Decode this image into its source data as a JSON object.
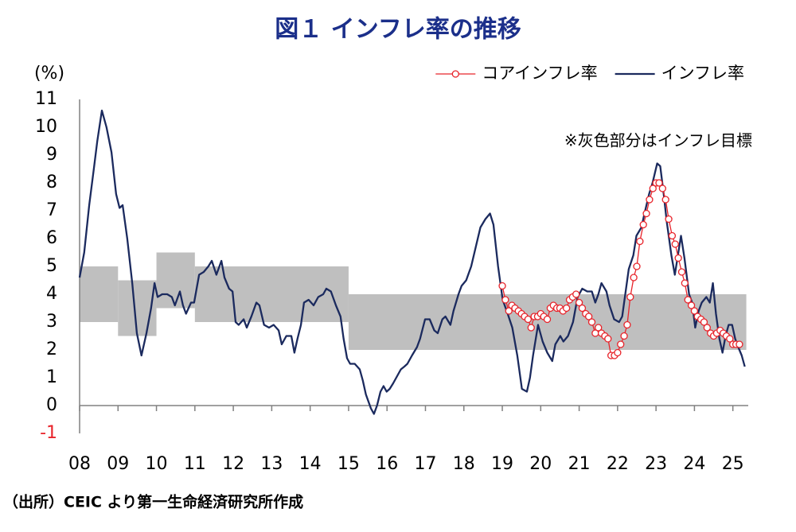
{
  "chart_data": {
    "type": "line",
    "title": "図１ インフレ率の推移",
    "y_label": "(%)",
    "annotation": "※灰色部分はインフレ目標",
    "source": "（出所）CEIC より第一生命経済研究所作成",
    "xlim": [
      2008,
      2025.4
    ],
    "xticks": [
      {
        "value": 2008,
        "label": "08"
      },
      {
        "value": 2009,
        "label": "09"
      },
      {
        "value": 2010,
        "label": "10"
      },
      {
        "value": 2011,
        "label": "11"
      },
      {
        "value": 2012,
        "label": "12"
      },
      {
        "value": 2013,
        "label": "13"
      },
      {
        "value": 2014,
        "label": "14"
      },
      {
        "value": 2015,
        "label": "15"
      },
      {
        "value": 2016,
        "label": "16"
      },
      {
        "value": 2017,
        "label": "17"
      },
      {
        "value": 2018,
        "label": "18"
      },
      {
        "value": 2019,
        "label": "19"
      },
      {
        "value": 2020,
        "label": "20"
      },
      {
        "value": 2021,
        "label": "21"
      },
      {
        "value": 2022,
        "label": "22"
      },
      {
        "value": 2023,
        "label": "23"
      },
      {
        "value": 2024,
        "label": "24"
      },
      {
        "value": 2025,
        "label": "25"
      }
    ],
    "ylim": [
      -1,
      11
    ],
    "yticks": [
      -1,
      0,
      1,
      2,
      3,
      4,
      5,
      6,
      7,
      8,
      9,
      10,
      11
    ],
    "negative_tick_color": "#e8242b",
    "grid": false,
    "legend": "top-right",
    "target_band": {
      "color": "#bfbfbf",
      "segments": [
        {
          "x": [
            2008,
            2009
          ],
          "range": [
            3,
            5
          ]
        },
        {
          "x": [
            2009,
            2010
          ],
          "range": [
            2.5,
            4.5
          ]
        },
        {
          "x": [
            2010,
            2011
          ],
          "range": [
            3.5,
            5.5
          ]
        },
        {
          "x": [
            2011,
            2015
          ],
          "range": [
            3,
            5
          ]
        },
        {
          "x": [
            2015,
            2025.35
          ],
          "range": [
            2,
            4
          ]
        }
      ]
    },
    "series": [
      {
        "name": "コアインフレ率",
        "color": "#e8242b",
        "marker": "circle",
        "x": [
          2019.0,
          2019.08,
          2019.17,
          2019.25,
          2019.33,
          2019.42,
          2019.5,
          2019.58,
          2019.67,
          2019.75,
          2019.83,
          2019.92,
          2020.0,
          2020.08,
          2020.17,
          2020.25,
          2020.33,
          2020.42,
          2020.5,
          2020.58,
          2020.67,
          2020.75,
          2020.83,
          2020.92,
          2021.0,
          2021.08,
          2021.17,
          2021.25,
          2021.33,
          2021.42,
          2021.5,
          2021.58,
          2021.67,
          2021.75,
          2021.83,
          2021.92,
          2022.0,
          2022.08,
          2022.17,
          2022.25,
          2022.33,
          2022.42,
          2022.5,
          2022.58,
          2022.67,
          2022.75,
          2022.83,
          2022.92,
          2023.0,
          2023.08,
          2023.17,
          2023.25,
          2023.33,
          2023.42,
          2023.5,
          2023.58,
          2023.67,
          2023.75,
          2023.83,
          2023.92,
          2024.0,
          2024.08,
          2024.17,
          2024.25,
          2024.33,
          2024.42,
          2024.5,
          2024.58,
          2024.67,
          2024.75,
          2024.83,
          2024.92,
          2025.0,
          2025.08,
          2025.17
        ],
        "values": [
          4.3,
          3.8,
          3.4,
          3.6,
          3.5,
          3.4,
          3.3,
          3.2,
          3.1,
          2.8,
          3.2,
          3.2,
          3.3,
          3.2,
          3.1,
          3.5,
          3.6,
          3.5,
          3.5,
          3.4,
          3.5,
          3.8,
          3.9,
          4.0,
          3.7,
          3.5,
          3.3,
          3.2,
          3.0,
          2.6,
          2.8,
          2.6,
          2.5,
          2.4,
          1.8,
          1.8,
          1.9,
          2.2,
          2.5,
          2.9,
          3.9,
          4.6,
          5.0,
          5.9,
          6.5,
          6.9,
          7.4,
          7.8,
          8.0,
          8.0,
          7.8,
          7.4,
          6.7,
          6.1,
          5.8,
          5.3,
          4.8,
          4.4,
          3.8,
          3.6,
          3.4,
          3.2,
          3.1,
          3.0,
          2.8,
          2.6,
          2.5,
          2.6,
          2.7,
          2.6,
          2.5,
          2.4,
          2.2,
          2.2,
          2.2
        ]
      },
      {
        "name": "インフレ率",
        "color": "#1b2a5e",
        "x": [
          2008.0,
          2008.12,
          2008.25,
          2008.37,
          2008.46,
          2008.58,
          2008.7,
          2008.83,
          2008.95,
          2009.04,
          2009.12,
          2009.24,
          2009.37,
          2009.49,
          2009.61,
          2009.74,
          2009.86,
          2009.95,
          2010.03,
          2010.15,
          2010.28,
          2010.4,
          2010.48,
          2010.61,
          2010.69,
          2010.77,
          2010.9,
          2010.98,
          2011.11,
          2011.23,
          2011.35,
          2011.44,
          2011.56,
          2011.69,
          2011.77,
          2011.89,
          2011.98,
          2012.06,
          2012.14,
          2012.27,
          2012.35,
          2012.47,
          2012.6,
          2012.68,
          2012.8,
          2012.93,
          2013.05,
          2013.18,
          2013.26,
          2013.38,
          2013.51,
          2013.59,
          2013.67,
          2013.76,
          2013.84,
          2013.96,
          2014.09,
          2014.21,
          2014.34,
          2014.42,
          2014.54,
          2014.67,
          2014.79,
          2014.87,
          2014.96,
          2015.04,
          2015.16,
          2015.29,
          2015.37,
          2015.45,
          2015.58,
          2015.66,
          2015.74,
          2015.83,
          2015.91,
          2015.99,
          2016.07,
          2016.16,
          2016.28,
          2016.36,
          2016.45,
          2016.53,
          2016.65,
          2016.78,
          2016.86,
          2016.99,
          2017.11,
          2017.23,
          2017.32,
          2017.44,
          2017.52,
          2017.65,
          2017.73,
          2017.86,
          2017.94,
          2018.06,
          2018.19,
          2018.31,
          2018.43,
          2018.56,
          2018.68,
          2018.77,
          2018.89,
          2019.01,
          2019.14,
          2019.26,
          2019.39,
          2019.51,
          2019.64,
          2019.72,
          2019.8,
          2019.93,
          2020.05,
          2020.17,
          2020.3,
          2020.38,
          2020.51,
          2020.59,
          2020.71,
          2020.84,
          2020.96,
          2021.08,
          2021.21,
          2021.33,
          2021.42,
          2021.5,
          2021.58,
          2021.71,
          2021.79,
          2021.91,
          2022.04,
          2022.12,
          2022.2,
          2022.29,
          2022.41,
          2022.49,
          2022.62,
          2022.7,
          2022.82,
          2022.91,
          2023.03,
          2023.11,
          2023.2,
          2023.28,
          2023.4,
          2023.49,
          2023.57,
          2023.65,
          2023.74,
          2023.86,
          2023.94,
          2024.02,
          2024.11,
          2024.19,
          2024.31,
          2024.4,
          2024.48,
          2024.56,
          2024.65,
          2024.73,
          2024.81,
          2024.89,
          2024.98,
          2025.06,
          2025.14,
          2025.23,
          2025.31
        ],
        "values": [
          4.6,
          5.5,
          7.2,
          8.5,
          9.5,
          10.6,
          10.0,
          9.1,
          7.6,
          7.1,
          7.2,
          6.0,
          4.4,
          2.6,
          1.8,
          2.6,
          3.5,
          4.4,
          3.9,
          4.0,
          4.0,
          3.9,
          3.6,
          4.1,
          3.6,
          3.3,
          3.7,
          3.7,
          4.7,
          4.8,
          5.0,
          5.2,
          4.7,
          5.2,
          4.6,
          4.2,
          4.1,
          3.0,
          2.9,
          3.1,
          2.8,
          3.2,
          3.7,
          3.6,
          2.9,
          2.8,
          2.9,
          2.7,
          2.2,
          2.5,
          2.5,
          1.9,
          2.4,
          2.9,
          3.7,
          3.8,
          3.6,
          3.9,
          4.0,
          4.2,
          4.1,
          3.6,
          3.2,
          2.4,
          1.7,
          1.5,
          1.5,
          1.3,
          0.9,
          0.4,
          -0.1,
          -0.3,
          0.0,
          0.5,
          0.7,
          0.5,
          0.6,
          0.8,
          1.1,
          1.3,
          1.4,
          1.5,
          1.8,
          2.1,
          2.4,
          3.1,
          3.1,
          2.7,
          2.6,
          3.1,
          3.2,
          2.9,
          3.4,
          4.0,
          4.3,
          4.5,
          5.0,
          5.7,
          6.4,
          6.7,
          6.9,
          6.5,
          5.0,
          3.8,
          3.3,
          2.8,
          1.8,
          0.6,
          0.5,
          1.0,
          1.8,
          2.9,
          2.3,
          1.9,
          1.6,
          2.2,
          2.5,
          2.3,
          2.5,
          3.0,
          3.9,
          4.2,
          4.1,
          4.1,
          3.7,
          4.0,
          4.4,
          4.1,
          3.6,
          3.1,
          3.0,
          3.2,
          4.0,
          4.9,
          5.4,
          6.1,
          6.4,
          6.9,
          7.6,
          8.0,
          8.7,
          8.6,
          7.6,
          6.6,
          5.4,
          4.7,
          5.4,
          6.1,
          5.3,
          4.0,
          3.7,
          2.8,
          3.4,
          3.7,
          3.9,
          3.7,
          4.4,
          3.3,
          2.4,
          1.9,
          2.5,
          2.9,
          2.9,
          2.4,
          2.1,
          1.8,
          1.4
        ]
      }
    ]
  }
}
